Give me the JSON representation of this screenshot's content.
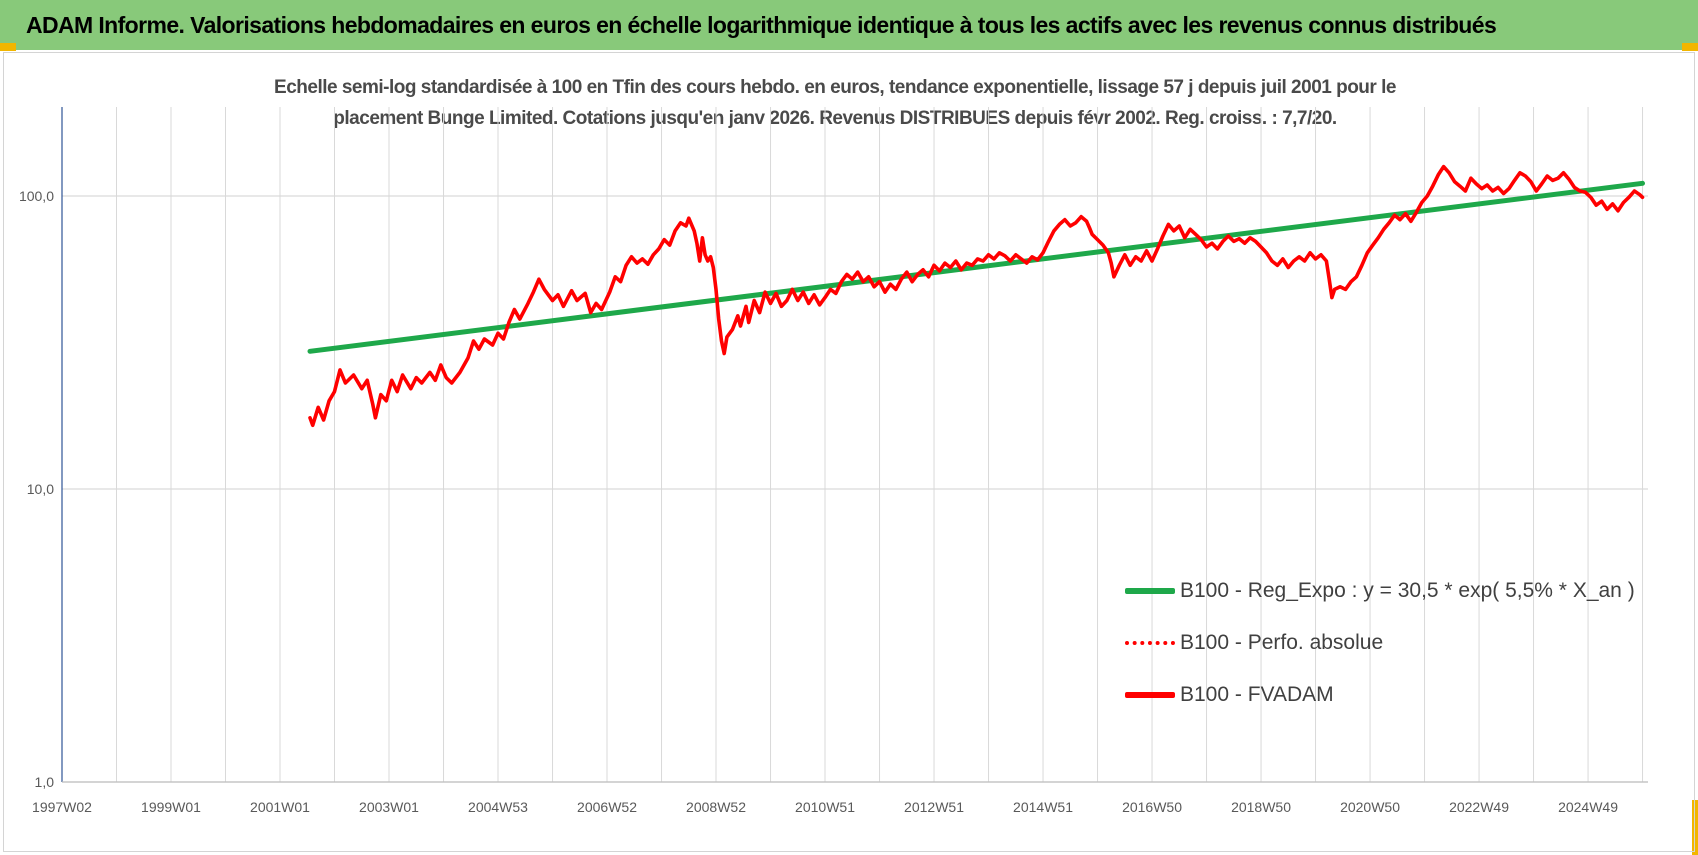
{
  "header": {
    "title": "ADAM Informe. Valorisations hebdomadaires en euros en échelle logarithmique identique à tous les actifs avec les revenus connus distribués"
  },
  "colors": {
    "banner": "#88c97a",
    "regression": "#1ea84a",
    "fvadam": "#ff0000",
    "grid": "#d9d9d9",
    "axis": "#2f5597"
  },
  "chart_data": {
    "type": "line",
    "subtitle_lines": [
      "Echelle semi-log standardisée à 100 en Tfin des cours hebdo. en euros, tendance exponentielle, lissage 57 j depuis juil 2001 pour le",
      "placement Bunge Limited. Cotations jusqu'en janv 2026. Revenus DISTRIBUES depuis févr 2002. Reg. croiss. : 7,7/20."
    ],
    "y_scale": "log",
    "ylim": [
      1,
      200
    ],
    "y_ticks": [
      {
        "value": 1,
        "label": "1,0"
      },
      {
        "value": 10,
        "label": "10,0"
      },
      {
        "value": 100,
        "label": "100,0"
      }
    ],
    "xlim": [
      1997.0,
      2026.1
    ],
    "x_ticks": [
      {
        "value": 1997.0,
        "label": "1997W02"
      },
      {
        "value": 1999.0,
        "label": "1999W01"
      },
      {
        "value": 2001.0,
        "label": "2001W01"
      },
      {
        "value": 2003.0,
        "label": "2003W01"
      },
      {
        "value": 2005.0,
        "label": "2004W53"
      },
      {
        "value": 2007.0,
        "label": "2006W52"
      },
      {
        "value": 2009.0,
        "label": "2008W52"
      },
      {
        "value": 2011.0,
        "label": "2010W51"
      },
      {
        "value": 2013.0,
        "label": "2012W51"
      },
      {
        "value": 2015.0,
        "label": "2014W51"
      },
      {
        "value": 2017.0,
        "label": "2016W50"
      },
      {
        "value": 2019.0,
        "label": "2018W50"
      },
      {
        "value": 2021.0,
        "label": "2020W50"
      },
      {
        "value": 2023.0,
        "label": "2022W49"
      },
      {
        "value": 2025.0,
        "label": "2024W49"
      }
    ],
    "grid": true,
    "legend_position": "bottom-right",
    "series": [
      {
        "name": "B100 - Reg_Expo : y = 30,5 * exp( 5,5% *  X_an )",
        "style": "solid",
        "color": "#1ea84a",
        "points": [
          [
            2001.55,
            29.5
          ],
          [
            2026.0,
            110.5
          ]
        ]
      },
      {
        "name": "B100 - Perfo. absolue",
        "style": "dotted",
        "color": "#ff0000",
        "points": []
      },
      {
        "name": "B100 - FVADAM",
        "style": "solid",
        "color": "#ff0000",
        "points": [
          [
            2001.55,
            17.5
          ],
          [
            2001.6,
            16.5
          ],
          [
            2001.7,
            19.0
          ],
          [
            2001.8,
            17.2
          ],
          [
            2001.9,
            20.0
          ],
          [
            2002.0,
            21.5
          ],
          [
            2002.1,
            25.5
          ],
          [
            2002.2,
            23.0
          ],
          [
            2002.35,
            24.5
          ],
          [
            2002.5,
            22.0
          ],
          [
            2002.6,
            23.5
          ],
          [
            2002.7,
            19.5
          ],
          [
            2002.75,
            17.5
          ],
          [
            2002.85,
            21.0
          ],
          [
            2002.95,
            20.0
          ],
          [
            2003.05,
            23.5
          ],
          [
            2003.15,
            21.5
          ],
          [
            2003.25,
            24.5
          ],
          [
            2003.4,
            22.0
          ],
          [
            2003.5,
            24.0
          ],
          [
            2003.6,
            23.0
          ],
          [
            2003.75,
            25.0
          ],
          [
            2003.85,
            23.5
          ],
          [
            2003.95,
            26.5
          ],
          [
            2004.05,
            24.0
          ],
          [
            2004.15,
            23.0
          ],
          [
            2004.3,
            25.0
          ],
          [
            2004.45,
            28.0
          ],
          [
            2004.55,
            32.0
          ],
          [
            2004.65,
            30.0
          ],
          [
            2004.75,
            32.5
          ],
          [
            2004.9,
            31.0
          ],
          [
            2005.0,
            34.0
          ],
          [
            2005.1,
            32.5
          ],
          [
            2005.2,
            37.0
          ],
          [
            2005.3,
            41.0
          ],
          [
            2005.4,
            38.0
          ],
          [
            2005.55,
            43.0
          ],
          [
            2005.65,
            47.0
          ],
          [
            2005.75,
            52.0
          ],
          [
            2005.85,
            48.0
          ],
          [
            2006.0,
            44.0
          ],
          [
            2006.1,
            46.0
          ],
          [
            2006.2,
            42.0
          ],
          [
            2006.35,
            47.5
          ],
          [
            2006.45,
            44.0
          ],
          [
            2006.6,
            46.5
          ],
          [
            2006.7,
            40.0
          ],
          [
            2006.8,
            43.0
          ],
          [
            2006.9,
            41.0
          ],
          [
            2007.05,
            47.0
          ],
          [
            2007.15,
            53.0
          ],
          [
            2007.25,
            51.0
          ],
          [
            2007.35,
            58.0
          ],
          [
            2007.45,
            62.0
          ],
          [
            2007.55,
            59.0
          ],
          [
            2007.65,
            61.0
          ],
          [
            2007.75,
            58.5
          ],
          [
            2007.85,
            63.0
          ],
          [
            2007.95,
            66.0
          ],
          [
            2008.05,
            71.0
          ],
          [
            2008.15,
            68.0
          ],
          [
            2008.25,
            76.0
          ],
          [
            2008.35,
            81.0
          ],
          [
            2008.45,
            79.0
          ],
          [
            2008.5,
            84.0
          ],
          [
            2008.6,
            76.0
          ],
          [
            2008.65,
            69.0
          ],
          [
            2008.7,
            60.0
          ],
          [
            2008.75,
            72.0
          ],
          [
            2008.8,
            63.0
          ],
          [
            2008.85,
            60.0
          ],
          [
            2008.9,
            62.0
          ],
          [
            2008.95,
            57.0
          ],
          [
            2009.0,
            48.0
          ],
          [
            2009.05,
            38.0
          ],
          [
            2009.1,
            32.0
          ],
          [
            2009.15,
            29.0
          ],
          [
            2009.2,
            33.0
          ],
          [
            2009.3,
            35.0
          ],
          [
            2009.4,
            39.0
          ],
          [
            2009.45,
            36.0
          ],
          [
            2009.55,
            42.0
          ],
          [
            2009.6,
            37.0
          ],
          [
            2009.7,
            44.0
          ],
          [
            2009.8,
            40.0
          ],
          [
            2009.9,
            47.0
          ],
          [
            2010.0,
            43.0
          ],
          [
            2010.1,
            46.5
          ],
          [
            2010.2,
            42.0
          ],
          [
            2010.3,
            44.0
          ],
          [
            2010.4,
            48.0
          ],
          [
            2010.5,
            44.0
          ],
          [
            2010.6,
            47.0
          ],
          [
            2010.7,
            43.0
          ],
          [
            2010.8,
            46.0
          ],
          [
            2010.9,
            42.5
          ],
          [
            2011.0,
            45.0
          ],
          [
            2011.1,
            48.0
          ],
          [
            2011.2,
            46.5
          ],
          [
            2011.3,
            51.0
          ],
          [
            2011.4,
            54.0
          ],
          [
            2011.5,
            52.0
          ],
          [
            2011.6,
            55.0
          ],
          [
            2011.7,
            51.0
          ],
          [
            2011.8,
            53.0
          ],
          [
            2011.9,
            49.0
          ],
          [
            2012.0,
            51.0
          ],
          [
            2012.1,
            47.0
          ],
          [
            2012.2,
            50.0
          ],
          [
            2012.3,
            48.0
          ],
          [
            2012.4,
            52.0
          ],
          [
            2012.5,
            55.0
          ],
          [
            2012.6,
            51.0
          ],
          [
            2012.7,
            54.0
          ],
          [
            2012.8,
            56.0
          ],
          [
            2012.9,
            53.0
          ],
          [
            2013.0,
            58.0
          ],
          [
            2013.1,
            55.5
          ],
          [
            2013.2,
            59.0
          ],
          [
            2013.3,
            57.0
          ],
          [
            2013.4,
            60.0
          ],
          [
            2013.5,
            56.0
          ],
          [
            2013.6,
            59.0
          ],
          [
            2013.7,
            58.0
          ],
          [
            2013.8,
            61.0
          ],
          [
            2013.9,
            60.0
          ],
          [
            2014.0,
            63.0
          ],
          [
            2014.1,
            61.0
          ],
          [
            2014.2,
            64.0
          ],
          [
            2014.3,
            62.5
          ],
          [
            2014.4,
            60.0
          ],
          [
            2014.5,
            63.0
          ],
          [
            2014.6,
            61.0
          ],
          [
            2014.7,
            59.0
          ],
          [
            2014.8,
            62.0
          ],
          [
            2014.9,
            60.5
          ],
          [
            2015.0,
            64.0
          ],
          [
            2015.1,
            70.0
          ],
          [
            2015.2,
            76.0
          ],
          [
            2015.3,
            80.0
          ],
          [
            2015.4,
            83.0
          ],
          [
            2015.5,
            79.0
          ],
          [
            2015.6,
            81.0
          ],
          [
            2015.7,
            85.0
          ],
          [
            2015.8,
            82.0
          ],
          [
            2015.85,
            78.0
          ],
          [
            2015.9,
            74.0
          ],
          [
            2016.0,
            71.0
          ],
          [
            2016.1,
            68.0
          ],
          [
            2016.2,
            64.0
          ],
          [
            2016.25,
            59.0
          ],
          [
            2016.3,
            53.0
          ],
          [
            2016.4,
            58.0
          ],
          [
            2016.5,
            63.0
          ],
          [
            2016.6,
            58.0
          ],
          [
            2016.7,
            62.0
          ],
          [
            2016.8,
            60.0
          ],
          [
            2016.9,
            65.0
          ],
          [
            2017.0,
            60.0
          ],
          [
            2017.1,
            66.0
          ],
          [
            2017.2,
            73.0
          ],
          [
            2017.3,
            80.0
          ],
          [
            2017.4,
            76.0
          ],
          [
            2017.5,
            79.0
          ],
          [
            2017.6,
            72.0
          ],
          [
            2017.7,
            77.0
          ],
          [
            2017.8,
            74.0
          ],
          [
            2017.9,
            71.0
          ],
          [
            2018.0,
            67.0
          ],
          [
            2018.1,
            69.0
          ],
          [
            2018.2,
            66.0
          ],
          [
            2018.3,
            70.0
          ],
          [
            2018.4,
            73.0
          ],
          [
            2018.5,
            70.0
          ],
          [
            2018.6,
            71.5
          ],
          [
            2018.7,
            69.0
          ],
          [
            2018.8,
            72.0
          ],
          [
            2018.9,
            70.0
          ],
          [
            2019.0,
            67.0
          ],
          [
            2019.1,
            64.0
          ],
          [
            2019.2,
            60.0
          ],
          [
            2019.3,
            58.0
          ],
          [
            2019.4,
            61.0
          ],
          [
            2019.5,
            57.0
          ],
          [
            2019.6,
            60.0
          ],
          [
            2019.7,
            62.0
          ],
          [
            2019.8,
            60.0
          ],
          [
            2019.9,
            64.0
          ],
          [
            2020.0,
            61.0
          ],
          [
            2020.1,
            63.0
          ],
          [
            2020.2,
            60.0
          ],
          [
            2020.25,
            52.0
          ],
          [
            2020.3,
            45.0
          ],
          [
            2020.35,
            48.0
          ],
          [
            2020.45,
            49.0
          ],
          [
            2020.55,
            48.0
          ],
          [
            2020.65,
            51.0
          ],
          [
            2020.75,
            53.0
          ],
          [
            2020.85,
            58.0
          ],
          [
            2020.95,
            64.0
          ],
          [
            2021.05,
            68.0
          ],
          [
            2021.15,
            72.0
          ],
          [
            2021.25,
            77.0
          ],
          [
            2021.35,
            81.0
          ],
          [
            2021.45,
            86.0
          ],
          [
            2021.55,
            83.0
          ],
          [
            2021.65,
            87.0
          ],
          [
            2021.75,
            82.0
          ],
          [
            2021.85,
            88.0
          ],
          [
            2021.95,
            95.0
          ],
          [
            2022.05,
            100.0
          ],
          [
            2022.15,
            108.0
          ],
          [
            2022.25,
            118.0
          ],
          [
            2022.35,
            126.0
          ],
          [
            2022.45,
            120.0
          ],
          [
            2022.55,
            112.0
          ],
          [
            2022.65,
            108.0
          ],
          [
            2022.75,
            104.0
          ],
          [
            2022.85,
            115.0
          ],
          [
            2022.95,
            110.0
          ],
          [
            2023.05,
            106.0
          ],
          [
            2023.15,
            109.0
          ],
          [
            2023.25,
            104.0
          ],
          [
            2023.35,
            107.0
          ],
          [
            2023.45,
            102.0
          ],
          [
            2023.55,
            106.0
          ],
          [
            2023.65,
            113.0
          ],
          [
            2023.75,
            120.0
          ],
          [
            2023.85,
            117.0
          ],
          [
            2023.95,
            112.0
          ],
          [
            2024.05,
            104.0
          ],
          [
            2024.15,
            110.0
          ],
          [
            2024.25,
            117.0
          ],
          [
            2024.35,
            113.0
          ],
          [
            2024.45,
            115.0
          ],
          [
            2024.55,
            120.0
          ],
          [
            2024.65,
            114.0
          ],
          [
            2024.75,
            107.0
          ],
          [
            2024.85,
            104.0
          ],
          [
            2024.95,
            103.0
          ],
          [
            2025.05,
            99.0
          ],
          [
            2025.15,
            93.0
          ],
          [
            2025.25,
            96.0
          ],
          [
            2025.35,
            90.0
          ],
          [
            2025.45,
            94.0
          ],
          [
            2025.55,
            89.0
          ],
          [
            2025.65,
            95.0
          ],
          [
            2025.75,
            99.0
          ],
          [
            2025.85,
            104.0
          ],
          [
            2025.95,
            101.0
          ],
          [
            2026.0,
            99.0
          ]
        ]
      }
    ]
  }
}
